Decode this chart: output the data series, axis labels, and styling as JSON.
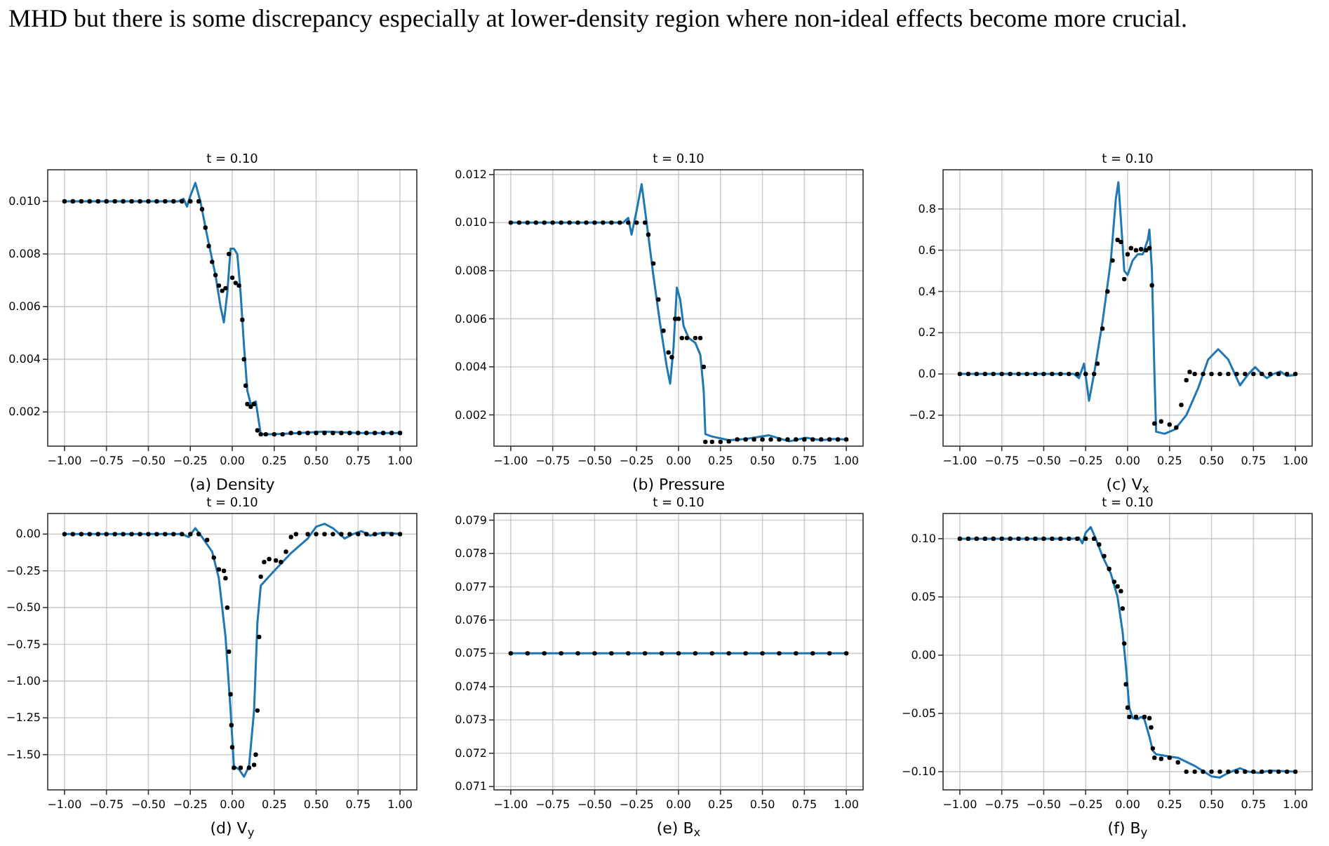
{
  "chart_data": [
    {
      "type": "line",
      "title": "t = 0.10",
      "xlabel": "(a) Density",
      "annotations": [
        "MHD but there is some discrepancy especially at lower-density region where non-ideal effects become more crucial."
      ],
      "grid": true,
      "xlim": [
        -1.1,
        1.1
      ],
      "xticks": [
        {
          "value": -1,
          "label": "−1.00"
        },
        {
          "value": -0.75,
          "label": "−0.75"
        },
        {
          "value": -0.5,
          "label": "−0.50"
        },
        {
          "value": -0.25,
          "label": "−0.25"
        },
        {
          "value": 0,
          "label": "0.00"
        },
        {
          "value": 0.25,
          "label": "0.25"
        },
        {
          "value": 0.5,
          "label": "0.50"
        },
        {
          "value": 0.75,
          "label": "0.75"
        },
        {
          "value": 1,
          "label": "1.00"
        }
      ],
      "ylim": [
        0.0007,
        0.0112
      ],
      "yticks": [
        0.002,
        0.004,
        0.006,
        0.008,
        {
          "value": 0.01,
          "label": "0.010"
        }
      ],
      "series": [
        {
          "color": "#1f77b4",
          "x": [
            -1,
            -0.32,
            -0.29,
            -0.27,
            -0.25,
            -0.22,
            -0.19,
            -0.15,
            -0.1,
            -0.07,
            -0.05,
            -0.03,
            -0.01,
            0.01,
            0.03,
            0.05,
            0.07,
            0.09,
            0.11,
            0.14,
            0.17,
            0.25,
            0.4,
            0.55,
            0.75,
            1
          ],
          "values": [
            0.01,
            0.01,
            0.0101,
            0.0098,
            0.0102,
            0.0107,
            0.01,
            0.0087,
            0.0072,
            0.006,
            0.0054,
            0.0065,
            0.0082,
            0.0082,
            0.008,
            0.0065,
            0.0045,
            0.0028,
            0.0023,
            0.0024,
            0.00115,
            0.00115,
            0.0012,
            0.00125,
            0.0012,
            0.0012
          ]
        },
        {
          "type": "scatter",
          "marker": "circle",
          "color": "#000000",
          "x": [
            -1,
            -0.95,
            -0.9,
            -0.85,
            -0.8,
            -0.75,
            -0.7,
            -0.65,
            -0.6,
            -0.55,
            -0.5,
            -0.45,
            -0.4,
            -0.35,
            -0.3,
            -0.25,
            -0.2,
            -0.18,
            -0.16,
            -0.14,
            -0.12,
            -0.1,
            -0.08,
            -0.06,
            -0.04,
            -0.02,
            0,
            0.02,
            0.04,
            0.06,
            0.07,
            0.08,
            0.09,
            0.11,
            0.13,
            0.15,
            0.17,
            0.2,
            0.25,
            0.3,
            0.35,
            0.4,
            0.45,
            0.5,
            0.55,
            0.6,
            0.65,
            0.7,
            0.75,
            0.8,
            0.85,
            0.9,
            0.95,
            1
          ],
          "values": [
            0.01,
            0.01,
            0.01,
            0.01,
            0.01,
            0.01,
            0.01,
            0.01,
            0.01,
            0.01,
            0.01,
            0.01,
            0.01,
            0.01,
            0.01,
            0.01,
            0.01,
            0.0097,
            0.009,
            0.0083,
            0.0077,
            0.0072,
            0.0068,
            0.0066,
            0.0067,
            0.008,
            0.0071,
            0.0069,
            0.0068,
            0.0055,
            0.004,
            0.003,
            0.0023,
            0.0022,
            0.0023,
            0.0013,
            0.00115,
            0.00115,
            0.00115,
            0.00115,
            0.0012,
            0.0012,
            0.0012,
            0.0012,
            0.0012,
            0.0012,
            0.0012,
            0.0012,
            0.0012,
            0.0012,
            0.0012,
            0.0012,
            0.0012,
            0.0012
          ]
        }
      ]
    },
    {
      "type": "line",
      "title": "t = 0.10",
      "xlabel": "(b) Pressure",
      "grid": true,
      "xlim": [
        -1.1,
        1.1
      ],
      "xticks": [
        {
          "value": -1,
          "label": "−1.00"
        },
        {
          "value": -0.75,
          "label": "−0.75"
        },
        {
          "value": -0.5,
          "label": "−0.50"
        },
        {
          "value": -0.25,
          "label": "−0.25"
        },
        {
          "value": 0,
          "label": "0.00"
        },
        {
          "value": 0.25,
          "label": "0.25"
        },
        {
          "value": 0.5,
          "label": "0.50"
        },
        {
          "value": 0.75,
          "label": "0.75"
        },
        {
          "value": 1,
          "label": "1.00"
        }
      ],
      "ylim": [
        0.0007,
        0.0122
      ],
      "yticks": [
        0.002,
        0.004,
        0.006,
        0.008,
        {
          "value": 0.01,
          "label": "0.010"
        },
        0.012
      ],
      "series": [
        {
          "color": "#1f77b4",
          "x": [
            -1,
            -0.33,
            -0.3,
            -0.28,
            -0.25,
            -0.22,
            -0.19,
            -0.15,
            -0.11,
            -0.07,
            -0.05,
            -0.03,
            -0.01,
            0.01,
            0.03,
            0.06,
            0.1,
            0.13,
            0.15,
            0.16,
            0.2,
            0.3,
            0.4,
            0.54,
            0.66,
            0.76,
            0.85,
            0.92,
            1
          ],
          "values": [
            0.01,
            0.01,
            0.0102,
            0.0095,
            0.0105,
            0.0116,
            0.01,
            0.0078,
            0.0058,
            0.004,
            0.0033,
            0.0048,
            0.0073,
            0.0068,
            0.0057,
            0.0052,
            0.005,
            0.0045,
            0.003,
            0.0012,
            0.0011,
            0.00095,
            0.001,
            0.00115,
            0.0009,
            0.00105,
            0.00095,
            0.001,
            0.00098
          ]
        },
        {
          "type": "scatter",
          "marker": "circle",
          "color": "#000000",
          "x": [
            -1,
            -0.95,
            -0.9,
            -0.85,
            -0.8,
            -0.75,
            -0.7,
            -0.65,
            -0.6,
            -0.55,
            -0.5,
            -0.45,
            -0.4,
            -0.35,
            -0.3,
            -0.25,
            -0.2,
            -0.18,
            -0.15,
            -0.12,
            -0.09,
            -0.06,
            -0.04,
            -0.02,
            0,
            0.02,
            0.05,
            0.1,
            0.13,
            0.15,
            0.16,
            0.2,
            0.25,
            0.3,
            0.35,
            0.4,
            0.45,
            0.5,
            0.55,
            0.6,
            0.65,
            0.7,
            0.75,
            0.8,
            0.85,
            0.9,
            0.95,
            1
          ],
          "values": [
            0.01,
            0.01,
            0.01,
            0.01,
            0.01,
            0.01,
            0.01,
            0.01,
            0.01,
            0.01,
            0.01,
            0.01,
            0.01,
            0.01,
            0.01,
            0.01,
            0.01,
            0.0095,
            0.0083,
            0.0068,
            0.0055,
            0.0046,
            0.0044,
            0.006,
            0.006,
            0.0052,
            0.0052,
            0.0052,
            0.0052,
            0.004,
            0.00088,
            0.00088,
            0.00088,
            0.0009,
            0.00098,
            0.00098,
            0.00098,
            0.00098,
            0.00098,
            0.00098,
            0.00098,
            0.00098,
            0.00098,
            0.00098,
            0.00098,
            0.00098,
            0.00098,
            0.00098
          ]
        }
      ]
    },
    {
      "type": "line",
      "title": "t = 0.10",
      "xlabel": "(c) V$_{x}$",
      "grid": true,
      "xlim": [
        -1.1,
        1.1
      ],
      "xticks": [
        {
          "value": -1,
          "label": "−1.00"
        },
        {
          "value": -0.75,
          "label": "−0.75"
        },
        {
          "value": -0.5,
          "label": "−0.50"
        },
        {
          "value": -0.25,
          "label": "−0.25"
        },
        {
          "value": 0,
          "label": "0.00"
        },
        {
          "value": 0.25,
          "label": "0.25"
        },
        {
          "value": 0.5,
          "label": "0.50"
        },
        {
          "value": 0.75,
          "label": "0.75"
        },
        {
          "value": 1,
          "label": "1.00"
        }
      ],
      "ylim": [
        -0.35,
        0.99
      ],
      "yticks": [
        {
          "value": -0.2,
          "label": "−0.2"
        },
        {
          "value": 0,
          "label": "0.0"
        },
        0.2,
        0.4,
        0.6,
        0.8
      ],
      "series": [
        {
          "color": "#1f77b4",
          "x": [
            -1,
            -0.32,
            -0.29,
            -0.26,
            -0.23,
            -0.2,
            -0.15,
            -0.1,
            -0.07,
            -0.055,
            -0.04,
            -0.02,
            0,
            0.03,
            0.06,
            0.09,
            0.12,
            0.13,
            0.145,
            0.16,
            0.17,
            0.22,
            0.28,
            0.35,
            0.42,
            0.48,
            0.54,
            0.6,
            0.67,
            0.72,
            0.76,
            0.8,
            0.83,
            0.87,
            0.91,
            0.95,
            1
          ],
          "values": [
            0,
            0,
            -0.02,
            0.05,
            -0.13,
            0,
            0.25,
            0.55,
            0.85,
            0.93,
            0.75,
            0.5,
            0.48,
            0.55,
            0.58,
            0.58,
            0.65,
            0.7,
            0.5,
            0,
            -0.28,
            -0.29,
            -0.27,
            -0.2,
            -0.07,
            0.07,
            0.12,
            0.07,
            -0.055,
            0,
            0.033,
            0,
            -0.02,
            0,
            0.012,
            -0.01,
            -0.005
          ]
        },
        {
          "type": "scatter",
          "marker": "circle",
          "color": "#000000",
          "x": [
            -1,
            -0.95,
            -0.9,
            -0.85,
            -0.8,
            -0.75,
            -0.7,
            -0.65,
            -0.6,
            -0.55,
            -0.5,
            -0.45,
            -0.4,
            -0.35,
            -0.3,
            -0.25,
            -0.2,
            -0.18,
            -0.15,
            -0.12,
            -0.09,
            -0.06,
            -0.04,
            -0.02,
            0,
            0.02,
            0.05,
            0.08,
            0.11,
            0.13,
            0.145,
            0.16,
            0.2,
            0.25,
            0.29,
            0.32,
            0.35,
            0.37,
            0.4,
            0.45,
            0.5,
            0.55,
            0.6,
            0.65,
            0.7,
            0.75,
            0.8,
            0.85,
            0.9,
            0.95,
            1
          ],
          "values": [
            0,
            0,
            0,
            0,
            0,
            0,
            0,
            0,
            0,
            0,
            0,
            0,
            0,
            0,
            0,
            0,
            0,
            0.05,
            0.22,
            0.4,
            0.55,
            0.65,
            0.64,
            0.46,
            0.58,
            0.61,
            0.6,
            0.605,
            0.6,
            0.61,
            0.43,
            -0.24,
            -0.23,
            -0.245,
            -0.26,
            -0.15,
            -0.03,
            0.01,
            0,
            0,
            0,
            0,
            0,
            0,
            0,
            0,
            0,
            0,
            0,
            0,
            0
          ]
        }
      ]
    },
    {
      "type": "line",
      "title": "t = 0.10",
      "xlabel": "(d) V$_{y}$",
      "grid": true,
      "xlim": [
        -1.1,
        1.1
      ],
      "xticks": [
        {
          "value": -1,
          "label": "−1.00"
        },
        {
          "value": -0.75,
          "label": "−0.75"
        },
        {
          "value": -0.5,
          "label": "−0.50"
        },
        {
          "value": -0.25,
          "label": "−0.25"
        },
        {
          "value": 0,
          "label": "0.00"
        },
        {
          "value": 0.25,
          "label": "0.25"
        },
        {
          "value": 0.5,
          "label": "0.50"
        },
        {
          "value": 0.75,
          "label": "0.75"
        },
        {
          "value": 1,
          "label": "1.00"
        }
      ],
      "ylim": [
        -1.74,
        0.14
      ],
      "yticks": [
        {
          "value": -1.5,
          "label": "−1.50"
        },
        {
          "value": -1.25,
          "label": "−1.25"
        },
        {
          "value": -1,
          "label": "−1.00"
        },
        {
          "value": -0.75,
          "label": "−0.75"
        },
        {
          "value": -0.5,
          "label": "−0.50"
        },
        {
          "value": -0.25,
          "label": "−0.25"
        },
        {
          "value": 0,
          "label": "0.00"
        }
      ],
      "series": [
        {
          "color": "#1f77b4",
          "x": [
            -1,
            -0.3,
            -0.26,
            -0.22,
            -0.18,
            -0.12,
            -0.08,
            -0.04,
            -0.01,
            0.01,
            0.04,
            0.07,
            0.1,
            0.13,
            0.15,
            0.17,
            0.25,
            0.35,
            0.45,
            0.5,
            0.55,
            0.6,
            0.67,
            0.72,
            0.77,
            0.82,
            0.9,
            1
          ],
          "values": [
            0,
            0,
            -0.02,
            0.04,
            -0.02,
            -0.12,
            -0.3,
            -0.7,
            -1.2,
            -1.58,
            -1.6,
            -1.65,
            -1.58,
            -1.2,
            -0.6,
            -0.35,
            -0.25,
            -0.13,
            -0.03,
            0.05,
            0.07,
            0.04,
            -0.03,
            0,
            0.02,
            -0.01,
            0.01,
            0
          ]
        },
        {
          "type": "scatter",
          "marker": "circle",
          "color": "#000000",
          "x": [
            -1,
            -0.95,
            -0.9,
            -0.85,
            -0.8,
            -0.75,
            -0.7,
            -0.65,
            -0.6,
            -0.55,
            -0.5,
            -0.45,
            -0.4,
            -0.35,
            -0.3,
            -0.25,
            -0.2,
            -0.15,
            -0.11,
            -0.08,
            -0.05,
            -0.04,
            -0.03,
            -0.02,
            -0.01,
            -0.005,
            0,
            0.01,
            0.05,
            0.1,
            0.13,
            0.14,
            0.15,
            0.16,
            0.17,
            0.19,
            0.22,
            0.26,
            0.29,
            0.32,
            0.35,
            0.38,
            0.45,
            0.5,
            0.55,
            0.6,
            0.65,
            0.7,
            0.75,
            0.8,
            0.85,
            0.9,
            0.95,
            1
          ],
          "values": [
            0,
            0,
            0,
            0,
            0,
            0,
            0,
            0,
            0,
            0,
            0,
            0,
            0,
            0,
            0,
            0,
            0,
            -0.04,
            -0.16,
            -0.24,
            -0.25,
            -0.3,
            -0.5,
            -0.8,
            -1.09,
            -1.3,
            -1.45,
            -1.59,
            -1.59,
            -1.59,
            -1.57,
            -1.5,
            -1.2,
            -0.7,
            -0.29,
            -0.19,
            -0.17,
            -0.18,
            -0.19,
            -0.12,
            -0.02,
            0,
            0,
            0,
            0,
            0,
            0,
            0,
            0,
            0,
            0,
            0,
            0,
            0
          ]
        }
      ]
    },
    {
      "type": "line",
      "title": "t = 0.10",
      "xlabel": "(e) B$_{x}$",
      "grid": true,
      "xlim": [
        -1.1,
        1.1
      ],
      "xticks": [
        {
          "value": -1,
          "label": "−1.00"
        },
        {
          "value": -0.75,
          "label": "−0.75"
        },
        {
          "value": -0.5,
          "label": "−0.50"
        },
        {
          "value": -0.25,
          "label": "−0.25"
        },
        {
          "value": 0,
          "label": "0.00"
        },
        {
          "value": 0.25,
          "label": "0.25"
        },
        {
          "value": 0.5,
          "label": "0.50"
        },
        {
          "value": 0.75,
          "label": "0.75"
        },
        {
          "value": 1,
          "label": "1.00"
        }
      ],
      "ylim": [
        0.0709,
        0.0792
      ],
      "yticks": [
        0.071,
        0.072,
        0.073,
        0.074,
        0.075,
        0.076,
        0.077,
        0.078,
        0.079
      ],
      "series": [
        {
          "color": "#1f77b4",
          "x": [
            -1,
            1
          ],
          "values": [
            0.075,
            0.075
          ]
        },
        {
          "type": "scatter",
          "marker": "circle",
          "color": "#000000",
          "x": [
            -1,
            -0.9,
            -0.8,
            -0.7,
            -0.6,
            -0.5,
            -0.4,
            -0.3,
            -0.2,
            -0.1,
            0,
            0.1,
            0.2,
            0.3,
            0.4,
            0.5,
            0.6,
            0.7,
            0.8,
            0.9,
            1
          ],
          "values": [
            0.075,
            0.075,
            0.075,
            0.075,
            0.075,
            0.075,
            0.075,
            0.075,
            0.075,
            0.075,
            0.075,
            0.075,
            0.075,
            0.075,
            0.075,
            0.075,
            0.075,
            0.075,
            0.075,
            0.075,
            0.075
          ]
        }
      ]
    },
    {
      "type": "line",
      "title": "t = 0.10",
      "xlabel": "(f) B$_{y}$",
      "grid": true,
      "xlim": [
        -1.1,
        1.1
      ],
      "xticks": [
        {
          "value": -1,
          "label": "−1.00"
        },
        {
          "value": -0.75,
          "label": "−0.75"
        },
        {
          "value": -0.5,
          "label": "−0.50"
        },
        {
          "value": -0.25,
          "label": "−0.25"
        },
        {
          "value": 0,
          "label": "0.00"
        },
        {
          "value": 0.25,
          "label": "0.25"
        },
        {
          "value": 0.5,
          "label": "0.50"
        },
        {
          "value": 0.75,
          "label": "0.75"
        },
        {
          "value": 1,
          "label": "1.00"
        }
      ],
      "ylim": [
        -0.1156,
        0.1216
      ],
      "yticks": [
        {
          "value": -0.1,
          "label": "−0.10"
        },
        {
          "value": -0.05,
          "label": "−0.05"
        },
        {
          "value": 0,
          "label": "0.00"
        },
        {
          "value": 0.05,
          "label": "0.05"
        },
        {
          "value": 0.1,
          "label": "0.10"
        }
      ],
      "series": [
        {
          "color": "#1f77b4",
          "x": [
            -1,
            -0.32,
            -0.29,
            -0.27,
            -0.25,
            -0.22,
            -0.19,
            -0.15,
            -0.1,
            -0.06,
            -0.03,
            -0.01,
            0.01,
            0.03,
            0.06,
            0.08,
            0.1,
            0.13,
            0.15,
            0.17,
            0.25,
            0.3,
            0.4,
            0.5,
            0.55,
            0.6,
            0.67,
            0.72,
            0.78,
            0.85,
            1
          ],
          "values": [
            0.1,
            0.1,
            0.101,
            0.096,
            0.105,
            0.11,
            0.1,
            0.085,
            0.07,
            0.05,
            0.02,
            -0.01,
            -0.045,
            -0.054,
            -0.055,
            -0.053,
            -0.055,
            -0.07,
            -0.082,
            -0.085,
            -0.087,
            -0.088,
            -0.095,
            -0.104,
            -0.105,
            -0.101,
            -0.097,
            -0.1,
            -0.101,
            -0.099,
            -0.1
          ]
        },
        {
          "type": "scatter",
          "marker": "circle",
          "color": "#000000",
          "x": [
            -1,
            -0.95,
            -0.9,
            -0.85,
            -0.8,
            -0.75,
            -0.7,
            -0.65,
            -0.6,
            -0.55,
            -0.5,
            -0.45,
            -0.4,
            -0.35,
            -0.3,
            -0.25,
            -0.2,
            -0.17,
            -0.14,
            -0.11,
            -0.08,
            -0.06,
            -0.04,
            -0.03,
            -0.02,
            -0.01,
            0,
            0.01,
            0.05,
            0.1,
            0.13,
            0.14,
            0.15,
            0.16,
            0.2,
            0.25,
            0.3,
            0.35,
            0.4,
            0.45,
            0.5,
            0.55,
            0.6,
            0.65,
            0.7,
            0.75,
            0.8,
            0.85,
            0.9,
            0.95,
            1
          ],
          "values": [
            0.1,
            0.1,
            0.1,
            0.1,
            0.1,
            0.1,
            0.1,
            0.1,
            0.1,
            0.1,
            0.1,
            0.1,
            0.1,
            0.1,
            0.1,
            0.1,
            0.1,
            0.095,
            0.085,
            0.074,
            0.063,
            0.059,
            0.055,
            0.04,
            0.01,
            -0.025,
            -0.045,
            -0.053,
            -0.053,
            -0.053,
            -0.054,
            -0.062,
            -0.08,
            -0.088,
            -0.089,
            -0.088,
            -0.092,
            -0.1,
            -0.1,
            -0.1,
            -0.1,
            -0.1,
            -0.1,
            -0.1,
            -0.1,
            -0.1,
            -0.1,
            -0.1,
            -0.1,
            -0.1,
            -0.1
          ]
        }
      ]
    }
  ]
}
